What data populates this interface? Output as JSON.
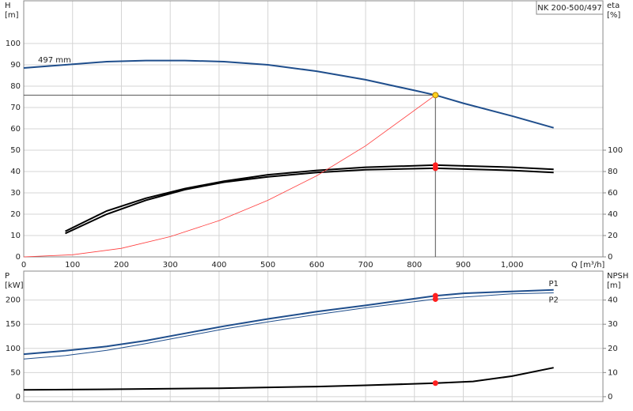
{
  "chart_data": [
    {
      "type": "line",
      "title": "NK 200-500/497",
      "ylabel_lines": [
        "H",
        "[m]"
      ],
      "y2label_lines": [
        "eta",
        "[%]"
      ],
      "xlabel": "Q [m³/h]",
      "xlim": [
        0,
        1186
      ],
      "xticks": [
        0,
        100,
        200,
        300,
        400,
        500,
        600,
        700,
        800,
        900,
        {
          "value": 1000,
          "label": "1,000"
        }
      ],
      "ylim": [
        0,
        120
      ],
      "yticks": [
        0,
        10,
        20,
        30,
        40,
        50,
        60,
        70,
        80,
        90,
        100
      ],
      "y2lim": [
        0,
        240
      ],
      "y2ticks": [
        0,
        20,
        40,
        60,
        80,
        100
      ],
      "grid": true,
      "series": [
        {
          "name": "497 mm",
          "color": "#1f4e8c",
          "axis": "y",
          "width": 2,
          "x": [
            0,
            85,
            170,
            250,
            330,
            410,
            500,
            600,
            700,
            800,
            843,
            900,
            1000,
            1085
          ],
          "values": [
            88.5,
            90,
            91.5,
            92,
            92,
            91.5,
            90,
            87,
            83,
            78,
            75.8,
            72,
            66,
            60.5
          ]
        },
        {
          "color": "#000000",
          "axis": "y2",
          "width": 2,
          "x": [
            85,
            170,
            250,
            330,
            410,
            500,
            600,
            700,
            843,
            1000,
            1085
          ],
          "values": [
            24,
            43,
            55,
            64,
            71,
            77,
            81,
            84,
            86,
            84,
            82
          ]
        },
        {
          "color": "#000000",
          "axis": "y2",
          "width": 2,
          "x": [
            85,
            170,
            250,
            330,
            410,
            500,
            600,
            700,
            843,
            1000,
            1085
          ],
          "values": [
            22,
            40,
            53,
            63,
            70,
            75,
            79,
            81.6,
            83,
            81,
            79
          ]
        },
        {
          "color": "#ff3b3b",
          "axis": "y",
          "width": 0.8,
          "x": [
            0,
            100,
            200,
            300,
            400,
            500,
            600,
            700,
            843
          ],
          "values": [
            0,
            1,
            4,
            9.5,
            17,
            26.5,
            38,
            52,
            75.8
          ]
        }
      ],
      "duty_point": {
        "x": 843,
        "h": 75.8,
        "eta": [
          86,
          83
        ]
      }
    },
    {
      "type": "line",
      "ylabel_lines": [
        "P",
        "[kW]"
      ],
      "y2label_lines": [
        "NPSH",
        "[m]"
      ],
      "xlim": [
        0,
        1186
      ],
      "xticks": [
        0,
        100,
        200,
        300,
        400,
        500,
        600,
        700,
        800,
        900,
        1000
      ],
      "ylim": [
        -10,
        260
      ],
      "yticks": [
        0,
        50,
        100,
        150,
        200
      ],
      "y2lim": [
        -2,
        52
      ],
      "y2ticks": [
        0,
        10,
        20,
        30,
        40
      ],
      "grid": true,
      "series": [
        {
          "name": "P1",
          "color": "#1f4e8c",
          "axis": "y",
          "width": 2,
          "x": [
            0,
            85,
            170,
            250,
            330,
            410,
            500,
            600,
            700,
            843,
            900,
            1000,
            1085
          ],
          "values": [
            88,
            95,
            104,
            116,
            131,
            146,
            161,
            176,
            189,
            209,
            214,
            218,
            221
          ]
        },
        {
          "name": "P2",
          "color": "#1f4e8c",
          "axis": "y",
          "width": 1,
          "x": [
            0,
            85,
            170,
            250,
            330,
            410,
            500,
            600,
            700,
            843,
            1000,
            1085
          ],
          "values": [
            78,
            85,
            96,
            110,
            125,
            140,
            155,
            170,
            184,
            202,
            213,
            215
          ]
        },
        {
          "color": "#000000",
          "axis": "y2",
          "width": 2,
          "x": [
            0,
            200,
            400,
            600,
            700,
            843,
            920,
            1000,
            1085
          ],
          "values": [
            2.8,
            3.1,
            3.5,
            4.2,
            4.7,
            5.6,
            6.3,
            8.5,
            12
          ]
        }
      ],
      "duty_point": {
        "x": 843,
        "p": [
          209,
          202
        ],
        "npsh": 5.6
      }
    }
  ]
}
